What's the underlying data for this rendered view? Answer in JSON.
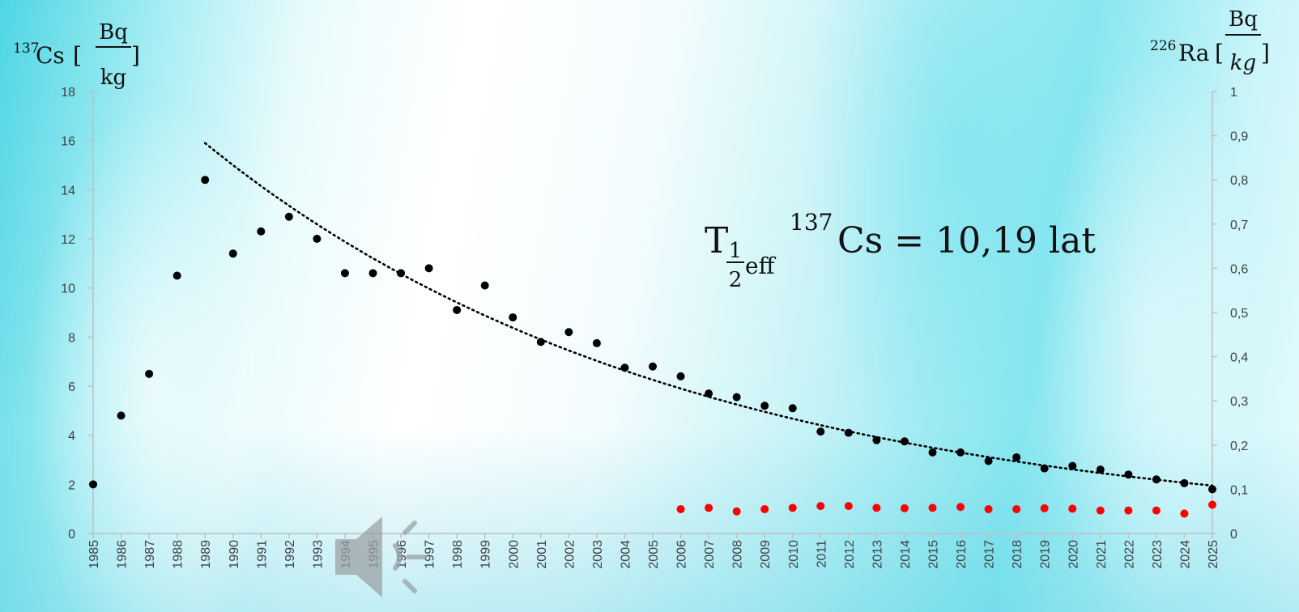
{
  "chart_data": {
    "type": "scatter",
    "left_axis": {
      "label": "¹³⁷Cs [Bq/kg]",
      "label_main": "Cs",
      "label_sup": "137",
      "unit_num": "Bq",
      "unit_den": "kg",
      "ylim": [
        0,
        18
      ],
      "ticks": [
        "0",
        "2",
        "4",
        "6",
        "8",
        "10",
        "12",
        "14",
        "16",
        "18"
      ]
    },
    "right_axis": {
      "label": "²²⁶Ra [Bq/kg]",
      "label_main": "Ra",
      "label_sup": "226",
      "unit_num": "Bq",
      "unit_den": "kg",
      "ylim": [
        0,
        1
      ],
      "ticks": [
        "0",
        "0,1",
        "0,2",
        "0,3",
        "0,4",
        "0,5",
        "0,6",
        "0,7",
        "0,8",
        "0,9",
        "1"
      ]
    },
    "categories": [
      "1985",
      "1986",
      "1987",
      "1988",
      "1989",
      "1990",
      "1991",
      "1992",
      "1993",
      "1994",
      "1995",
      "1996",
      "1997",
      "1998",
      "1999",
      "2000",
      "2001",
      "2002",
      "2003",
      "2004",
      "2005",
      "2006",
      "2007",
      "2008",
      "2009",
      "2010",
      "2011",
      "2012",
      "2013",
      "2014",
      "2015",
      "2016",
      "2017",
      "2018",
      "2019",
      "2020",
      "2021",
      "2022",
      "2023",
      "2024",
      "2025"
    ],
    "series": [
      {
        "axis": "left",
        "color": "#000000",
        "values": [
          2.0,
          4.8,
          6.5,
          10.5,
          14.4,
          11.4,
          12.3,
          12.9,
          12.0,
          10.6,
          10.6,
          10.6,
          10.8,
          9.1,
          10.1,
          8.8,
          7.8,
          8.2,
          7.75,
          6.75,
          6.8,
          6.4,
          5.7,
          5.55,
          5.2,
          5.1,
          4.15,
          4.1,
          3.8,
          3.75,
          3.3,
          3.3,
          2.95,
          3.1,
          2.65,
          2.75,
          2.6,
          2.4,
          2.2,
          2.05,
          1.8
        ]
      },
      {
        "axis": "right",
        "color": "#ff0000",
        "start_category": "2006",
        "values": [
          0.055,
          0.058,
          0.05,
          0.055,
          0.058,
          0.062,
          0.062,
          0.058,
          0.057,
          0.058,
          0.06,
          0.055,
          0.055,
          0.057,
          0.056,
          0.052,
          0.052,
          0.052,
          0.045,
          0.065
        ]
      }
    ],
    "trendline": {
      "type": "exponential",
      "style": "dotted",
      "color": "#000000",
      "axis": "left",
      "from_category": "1989",
      "to_category": "2025",
      "start_value": 15.9,
      "end_value": 1.95
    },
    "annotation": {
      "text": "T½eff ¹³⁷Cs = 10,19 lat",
      "main": "T",
      "sub_num": "1",
      "sub_den": "2",
      "sub_tail": "eff",
      "iso_sup": "137",
      "rest": "Cs = 10,19 lat"
    },
    "grid": false
  },
  "icons": {
    "speaker": "speaker-icon"
  }
}
